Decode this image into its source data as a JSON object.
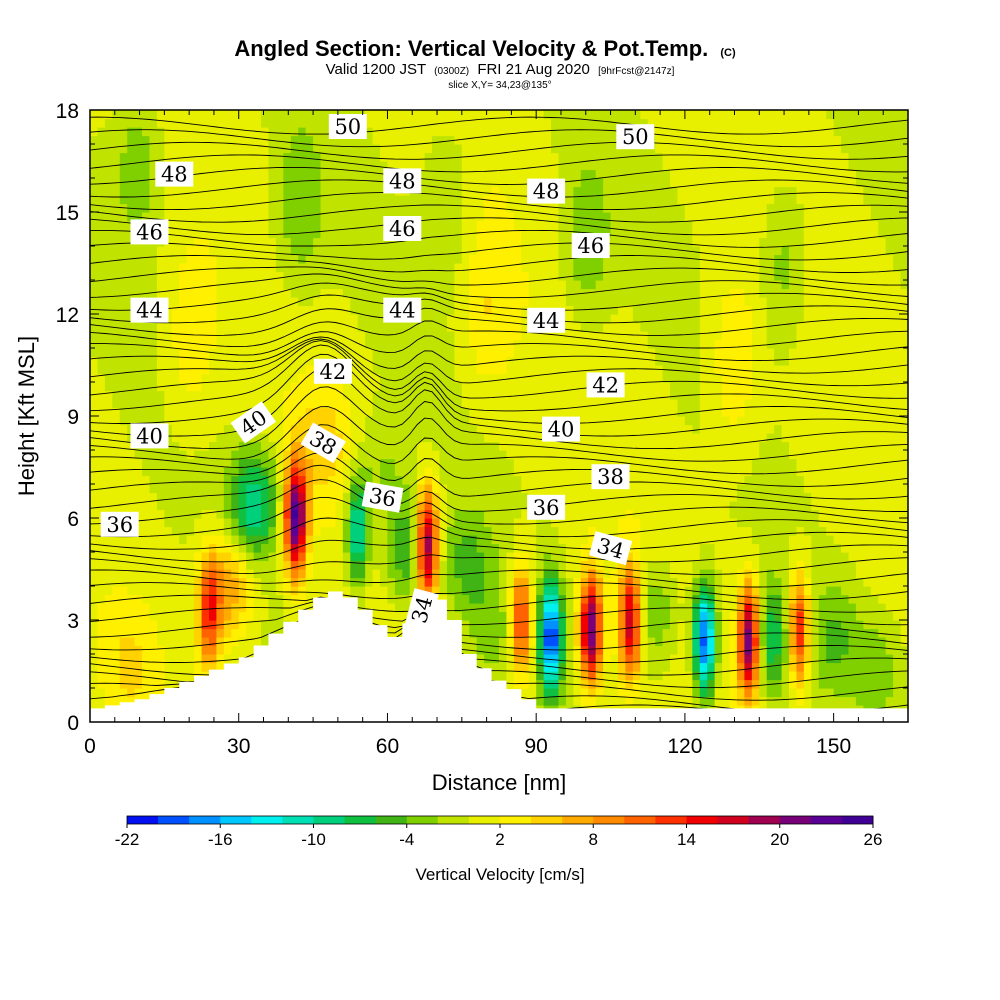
{
  "header": {
    "title": "Angled Section: Vertical Velocity & Pot.Temp.",
    "title_unit": "(C)",
    "valid_label": "Valid 1200 JST",
    "valid_utc": "(0300Z)",
    "valid_date": "FRI 21 Aug 2020",
    "forecast": "[9hrFcst@2147z]",
    "slice": "slice X,Y= 34,23@135°"
  },
  "chart_data": {
    "type": "heatmap",
    "xlabel": "Distance [nm]",
    "ylabel": "Height [Kft MSL]",
    "xlim": [
      0,
      165
    ],
    "ylim": [
      0,
      18
    ],
    "x_ticks": [
      "0",
      "30",
      "60",
      "90",
      "120",
      "150"
    ],
    "y_ticks": [
      "0",
      "3",
      "6",
      "9",
      "12",
      "15",
      "18"
    ],
    "colorbar": {
      "label": "Vertical Velocity [cm/s]",
      "ticks": [
        "-22",
        "-16",
        "-10",
        "-4",
        "2",
        "8",
        "14",
        "20",
        "26"
      ],
      "min": -22,
      "max": 26,
      "step": 2,
      "colors": [
        "#0010f0",
        "#0050ff",
        "#0090ff",
        "#00c8ff",
        "#00f0f0",
        "#00e0b4",
        "#00d07c",
        "#10c040",
        "#40b414",
        "#80d000",
        "#c0e400",
        "#e8f000",
        "#fff000",
        "#ffd200",
        "#ffaa00",
        "#ff8a00",
        "#ff6200",
        "#ff3000",
        "#f00000",
        "#d0001e",
        "#a00050",
        "#780078",
        "#5a0096",
        "#400096"
      ]
    },
    "terrain": [
      [
        0,
        0.4
      ],
      [
        10,
        0.7
      ],
      [
        20,
        1.3
      ],
      [
        30,
        1.9
      ],
      [
        36,
        2.6
      ],
      [
        42,
        3.3
      ],
      [
        47,
        3.9
      ],
      [
        52,
        3.6
      ],
      [
        56,
        3.0
      ],
      [
        58,
        2.7
      ],
      [
        61,
        2.4
      ],
      [
        63,
        2.9
      ],
      [
        65,
        3.6
      ],
      [
        70,
        3.6
      ],
      [
        72,
        3.0
      ],
      [
        75,
        2.0
      ],
      [
        80,
        1.3
      ],
      [
        86,
        0.8
      ],
      [
        89,
        0.4
      ],
      [
        165,
        0.4
      ]
    ],
    "w_cells": [
      {
        "x": 8,
        "z": 1.6,
        "w": 3
      },
      {
        "x": 24,
        "z": 3.2,
        "w": 12
      },
      {
        "x": 28,
        "z": 4.0,
        "w": 8
      },
      {
        "x": 33,
        "z": 6.4,
        "w": -10
      },
      {
        "x": 41.5,
        "z": 6.0,
        "w": 24
      },
      {
        "x": 47,
        "z": 8.2,
        "w": 4
      },
      {
        "x": 54,
        "z": 5.6,
        "w": -12
      },
      {
        "x": 59,
        "z": 7.4,
        "w": -3
      },
      {
        "x": 64,
        "z": 5.0,
        "w": -7
      },
      {
        "x": 68,
        "z": 5.2,
        "w": 22
      },
      {
        "x": 76,
        "z": 4.6,
        "w": -5
      },
      {
        "x": 81,
        "z": 2.6,
        "w": -3
      },
      {
        "x": 87,
        "z": 3.0,
        "w": 14
      },
      {
        "x": 93,
        "z": 2.5,
        "w": -20
      },
      {
        "x": 101,
        "z": 2.7,
        "w": 22
      },
      {
        "x": 109,
        "z": 2.9,
        "w": 18
      },
      {
        "x": 114,
        "z": 3.2,
        "w": -5
      },
      {
        "x": 124,
        "z": 2.4,
        "w": -20
      },
      {
        "x": 133,
        "z": 2.4,
        "w": 24
      },
      {
        "x": 137,
        "z": 2.4,
        "w": -8
      },
      {
        "x": 143,
        "z": 2.7,
        "w": 16
      },
      {
        "x": 150,
        "z": 2.5,
        "w": -4
      },
      {
        "x": 159,
        "z": 1.6,
        "w": -3
      },
      {
        "x": 10,
        "z": 16.5,
        "w": -4
      },
      {
        "x": 42,
        "z": 15.0,
        "w": -4
      },
      {
        "x": 72,
        "z": 15.5,
        "w": -3
      },
      {
        "x": 100,
        "z": 14.0,
        "w": -4
      },
      {
        "x": 140,
        "z": 13.5,
        "w": -4
      },
      {
        "x": 20,
        "z": 11.0,
        "w": 3
      },
      {
        "x": 80,
        "z": 12.0,
        "w": 3
      },
      {
        "x": 130,
        "z": 10.5,
        "w": 4
      }
    ],
    "theta_labels": [
      {
        "text": "50",
        "x": 52,
        "y": 17.5,
        "rot": 0
      },
      {
        "text": "50",
        "x": 110,
        "y": 17.2,
        "rot": 0
      },
      {
        "text": "48",
        "x": 17,
        "y": 16.1,
        "rot": 0
      },
      {
        "text": "48",
        "x": 63,
        "y": 15.9,
        "rot": 0
      },
      {
        "text": "48",
        "x": 92,
        "y": 15.6,
        "rot": 0
      },
      {
        "text": "46",
        "x": 12,
        "y": 14.4,
        "rot": 0
      },
      {
        "text": "46",
        "x": 63,
        "y": 14.5,
        "rot": 0
      },
      {
        "text": "46",
        "x": 101,
        "y": 14.0,
        "rot": 0
      },
      {
        "text": "44",
        "x": 12,
        "y": 12.1,
        "rot": 0
      },
      {
        "text": "44",
        "x": 63,
        "y": 12.1,
        "rot": 0
      },
      {
        "text": "44",
        "x": 92,
        "y": 11.8,
        "rot": 0
      },
      {
        "text": "42",
        "x": 49,
        "y": 10.3,
        "rot": 0
      },
      {
        "text": "42",
        "x": 104,
        "y": 9.9,
        "rot": 0
      },
      {
        "text": "40",
        "x": 12,
        "y": 8.4,
        "rot": 0
      },
      {
        "text": "40",
        "x": 33,
        "y": 8.8,
        "rot": -35
      },
      {
        "text": "40",
        "x": 95,
        "y": 8.6,
        "rot": 0
      },
      {
        "text": "38",
        "x": 47,
        "y": 8.2,
        "rot": 30
      },
      {
        "text": "38",
        "x": 105,
        "y": 7.2,
        "rot": 0
      },
      {
        "text": "36",
        "x": 6,
        "y": 5.8,
        "rot": 0
      },
      {
        "text": "36",
        "x": 59,
        "y": 6.6,
        "rot": 10
      },
      {
        "text": "36",
        "x": 92,
        "y": 6.3,
        "rot": 0
      },
      {
        "text": "34",
        "x": 105,
        "y": 5.1,
        "rot": 15
      },
      {
        "text": "34",
        "x": 67,
        "y": 3.3,
        "rot": -75
      }
    ]
  }
}
